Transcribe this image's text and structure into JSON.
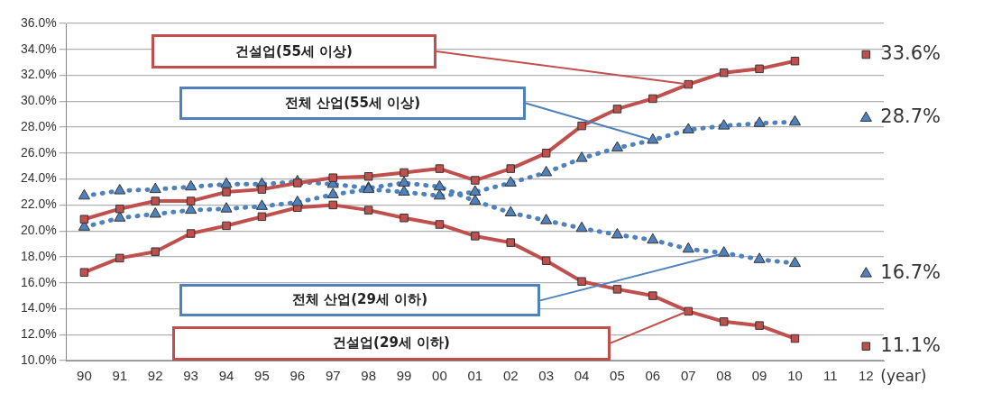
{
  "chart_data": {
    "type": "line",
    "xlabel": "(year)",
    "categories": [
      "90",
      "91",
      "92",
      "93",
      "94",
      "95",
      "96",
      "97",
      "98",
      "99",
      "00",
      "01",
      "02",
      "03",
      "04",
      "05",
      "06",
      "07",
      "08",
      "09",
      "10",
      "11",
      "12"
    ],
    "ylim": [
      10,
      36
    ],
    "yticks": [
      {
        "value": 10,
        "label": "10.0%"
      },
      {
        "value": 12,
        "label": "12.0%"
      },
      {
        "value": 14,
        "label": "14.0%"
      },
      {
        "value": 16,
        "label": "16.0%"
      },
      {
        "value": 18,
        "label": "18.0%"
      },
      {
        "value": 20,
        "label": "20.0%"
      },
      {
        "value": 22,
        "label": "22.0%"
      },
      {
        "value": 24,
        "label": "24.0%"
      },
      {
        "value": 26,
        "label": "26.0%"
      },
      {
        "value": 28,
        "label": "28.0%"
      },
      {
        "value": 30,
        "label": "30.0%"
      },
      {
        "value": 32,
        "label": "32.0%"
      },
      {
        "value": 34,
        "label": "34.0%"
      },
      {
        "value": 36,
        "label": "36.0%"
      }
    ],
    "grid": "y",
    "legend": false,
    "series": [
      {
        "name": "건설업(55세 이상)",
        "color": "#c0504d",
        "marker": "square",
        "line_style": "solid",
        "values": [
          20.9,
          21.7,
          22.3,
          22.3,
          23.0,
          23.2,
          23.7,
          24.1,
          24.2,
          24.5,
          24.8,
          23.9,
          24.8,
          26.0,
          28.1,
          29.4,
          30.2,
          31.3,
          32.2,
          32.5,
          33.1,
          null,
          33.6
        ],
        "value_labels": [
          null,
          null,
          null,
          null,
          null,
          null,
          null,
          null,
          null,
          null,
          null,
          null,
          null,
          null,
          null,
          null,
          null,
          null,
          null,
          null,
          null,
          null,
          "33.6%"
        ]
      },
      {
        "name": "전체 산업(55세 이상)",
        "color": "#4f81bd",
        "marker": "triangle",
        "line_style": "dotted",
        "values": [
          20.3,
          21.0,
          21.3,
          21.6,
          21.7,
          21.9,
          22.2,
          22.8,
          23.2,
          23.0,
          22.7,
          23.0,
          23.7,
          24.5,
          25.6,
          26.4,
          27.0,
          27.8,
          28.1,
          28.3,
          28.4,
          null,
          28.7
        ],
        "value_labels": [
          null,
          null,
          null,
          null,
          null,
          null,
          null,
          null,
          null,
          null,
          null,
          null,
          null,
          null,
          null,
          null,
          null,
          null,
          null,
          null,
          null,
          null,
          "28.7%"
        ]
      },
      {
        "name": "전체 산업(29세 이하)",
        "color": "#4f81bd",
        "marker": "triangle",
        "line_style": "dotted",
        "values": [
          22.7,
          23.1,
          23.2,
          23.4,
          23.6,
          23.6,
          23.8,
          23.6,
          23.3,
          23.7,
          23.4,
          22.3,
          21.4,
          20.8,
          20.2,
          19.7,
          19.3,
          18.6,
          18.3,
          17.8,
          17.5,
          null,
          16.7
        ],
        "value_labels": [
          null,
          null,
          null,
          null,
          null,
          null,
          null,
          null,
          null,
          null,
          null,
          null,
          null,
          null,
          null,
          null,
          null,
          null,
          null,
          null,
          null,
          null,
          "16.7%"
        ]
      },
      {
        "name": "건설업(29세 이하)",
        "color": "#c0504d",
        "marker": "square",
        "line_style": "solid",
        "values": [
          16.8,
          17.9,
          18.4,
          19.8,
          20.4,
          21.1,
          21.8,
          22.0,
          21.6,
          21.0,
          20.5,
          19.6,
          19.1,
          17.7,
          16.1,
          15.5,
          15.0,
          13.8,
          13.0,
          12.7,
          11.7,
          null,
          11.1
        ],
        "value_labels": [
          null,
          null,
          null,
          null,
          null,
          null,
          null,
          null,
          null,
          null,
          null,
          null,
          null,
          null,
          null,
          null,
          null,
          null,
          null,
          null,
          null,
          null,
          "11.1%"
        ]
      }
    ]
  }
}
